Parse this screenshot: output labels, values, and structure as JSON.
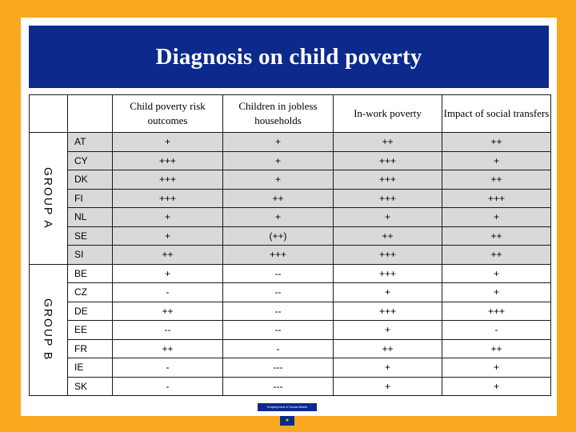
{
  "title": "Diagnosis on child poverty",
  "headers": [
    "Child poverty risk outcomes",
    "Children in jobless households",
    "In-work poverty",
    "Impact of social transfers"
  ],
  "groups": [
    {
      "label": "GROUP A",
      "rows": [
        {
          "country": "AT",
          "values": [
            "+",
            "+",
            "++",
            "++"
          ]
        },
        {
          "country": "CY",
          "values": [
            "+++",
            "+",
            "+++",
            "+"
          ]
        },
        {
          "country": "DK",
          "values": [
            "+++",
            "+",
            "+++",
            "++"
          ]
        },
        {
          "country": "FI",
          "values": [
            "+++",
            "++",
            "+++",
            "+++"
          ]
        },
        {
          "country": "NL",
          "values": [
            "+",
            "+",
            "+",
            "+"
          ]
        },
        {
          "country": "SE",
          "values": [
            "+",
            "(++)",
            "++",
            "++"
          ]
        },
        {
          "country": "SI",
          "values": [
            "++",
            "+++",
            "+++",
            "++"
          ]
        }
      ]
    },
    {
      "label": "GROUP B",
      "rows": [
        {
          "country": "BE",
          "values": [
            "+",
            "--",
            "+++",
            "+"
          ]
        },
        {
          "country": "CZ",
          "values": [
            "-",
            "--",
            "+",
            "+"
          ]
        },
        {
          "country": "DE",
          "values": [
            "++",
            "--",
            "+++",
            "+++"
          ]
        },
        {
          "country": "EE",
          "values": [
            "--",
            "--",
            "+",
            "-"
          ]
        },
        {
          "country": "FR",
          "values": [
            "++",
            "-",
            "++",
            "++"
          ]
        },
        {
          "country": "IE",
          "values": [
            "-",
            "---",
            "+",
            "+"
          ]
        },
        {
          "country": "SK",
          "values": [
            "-",
            "---",
            "+",
            "+"
          ]
        }
      ]
    }
  ],
  "footer": {
    "logo_text": "Employment & Social Affairs",
    "flag_glyph": "★"
  },
  "colors": {
    "background": "#f8a81f",
    "banner": "#0b2a8c",
    "group_a_row": "#d9d9d9"
  }
}
